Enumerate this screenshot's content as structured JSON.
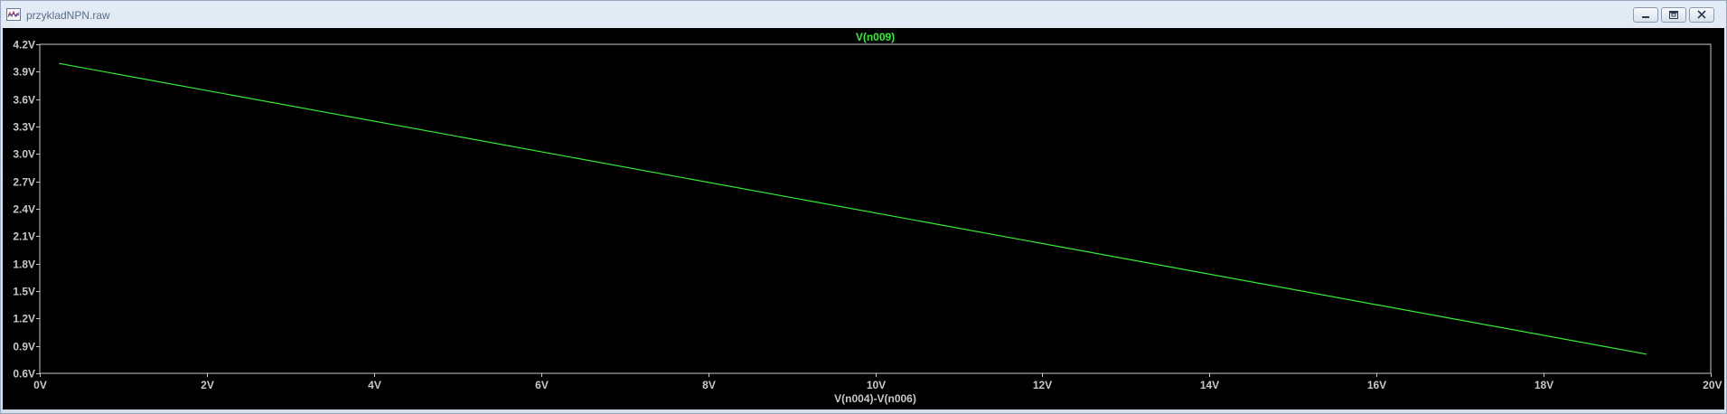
{
  "window": {
    "title": "przykladNPN.raw",
    "icon": "waveform-icon",
    "buttons": [
      "minimize-icon",
      "restore-icon",
      "close-icon"
    ]
  },
  "colors": {
    "background": "#000000",
    "axis": "#c8c8c8",
    "trace": "#33ee33"
  },
  "chart_data": {
    "type": "line",
    "title": "V(n009)",
    "xlabel": "V(n004)-V(n006)",
    "ylabel": "",
    "xlim": [
      0,
      20
    ],
    "ylim": [
      0.6,
      4.2
    ],
    "x_ticks": [
      0,
      2,
      4,
      6,
      8,
      10,
      12,
      14,
      16,
      18,
      20
    ],
    "x_tick_labels": [
      "0V",
      "2V",
      "4V",
      "6V",
      "8V",
      "10V",
      "12V",
      "14V",
      "16V",
      "18V",
      "20V"
    ],
    "y_ticks": [
      4.2,
      3.9,
      3.6,
      3.3,
      3.0,
      2.7,
      2.4,
      2.1,
      1.8,
      1.5,
      1.2,
      0.9,
      0.6
    ],
    "y_tick_labels": [
      "4.2V",
      "3.9V",
      "3.6V",
      "3.3V",
      "3.0V",
      "2.7V",
      "2.4V",
      "2.1V",
      "1.8V",
      "1.5V",
      "1.2V",
      "0.9V",
      "0.6V"
    ],
    "grid": false,
    "series": [
      {
        "name": "V(n009)",
        "color": "#33ee33",
        "x": [
          0.23,
          19.23
        ],
        "y": [
          3.99,
          0.81
        ]
      }
    ]
  }
}
